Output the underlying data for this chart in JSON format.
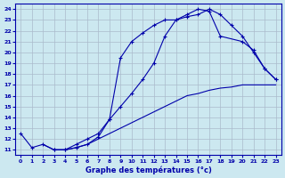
{
  "xlabel": "Graphe des températures (°c)",
  "bg_color": "#cce8f0",
  "grid_color": "#aabbcc",
  "line_color": "#0000aa",
  "xlim": [
    -0.5,
    23.5
  ],
  "ylim": [
    10.5,
    24.5
  ],
  "yticks": [
    11,
    12,
    13,
    14,
    15,
    16,
    17,
    18,
    19,
    20,
    21,
    22,
    23,
    24
  ],
  "xticks": [
    0,
    1,
    2,
    3,
    4,
    5,
    6,
    7,
    8,
    9,
    10,
    11,
    12,
    13,
    14,
    15,
    16,
    17,
    18,
    19,
    20,
    21,
    22,
    23
  ],
  "line1_x": [
    0,
    1,
    2,
    3,
    4,
    5,
    6,
    7,
    8,
    9,
    10,
    11,
    12,
    13,
    14,
    15,
    16,
    17,
    18,
    19,
    20,
    21,
    22,
    23
  ],
  "line1_y": [
    12.5,
    11.2,
    11.5,
    11.0,
    11.0,
    11.5,
    12.0,
    12.5,
    13.8,
    19.5,
    21.0,
    21.8,
    22.5,
    23.0,
    23.0,
    23.3,
    23.5,
    24.0,
    23.5,
    22.5,
    21.5,
    20.0,
    18.5,
    17.5
  ],
  "line2_x": [
    3,
    4,
    5,
    6,
    7,
    8,
    9,
    10,
    11,
    12,
    13,
    14,
    15,
    16,
    17,
    18,
    20,
    21,
    22,
    23
  ],
  "line2_y": [
    11.0,
    11.0,
    11.2,
    11.5,
    12.2,
    13.8,
    15.0,
    16.2,
    17.5,
    19.0,
    21.5,
    23.0,
    23.5,
    24.0,
    23.8,
    21.5,
    21.0,
    20.2,
    18.5,
    17.5
  ],
  "line3_x": [
    2,
    3,
    4,
    5,
    6,
    7,
    8,
    9,
    10,
    11,
    12,
    13,
    14,
    15,
    16,
    17,
    18,
    19,
    20,
    21,
    22,
    23
  ],
  "line3_y": [
    11.5,
    11.0,
    11.0,
    11.2,
    11.5,
    12.0,
    12.5,
    13.0,
    13.5,
    14.0,
    14.5,
    15.0,
    15.5,
    16.0,
    16.2,
    16.5,
    16.7,
    16.8,
    17.0,
    17.0,
    17.0,
    17.0
  ]
}
